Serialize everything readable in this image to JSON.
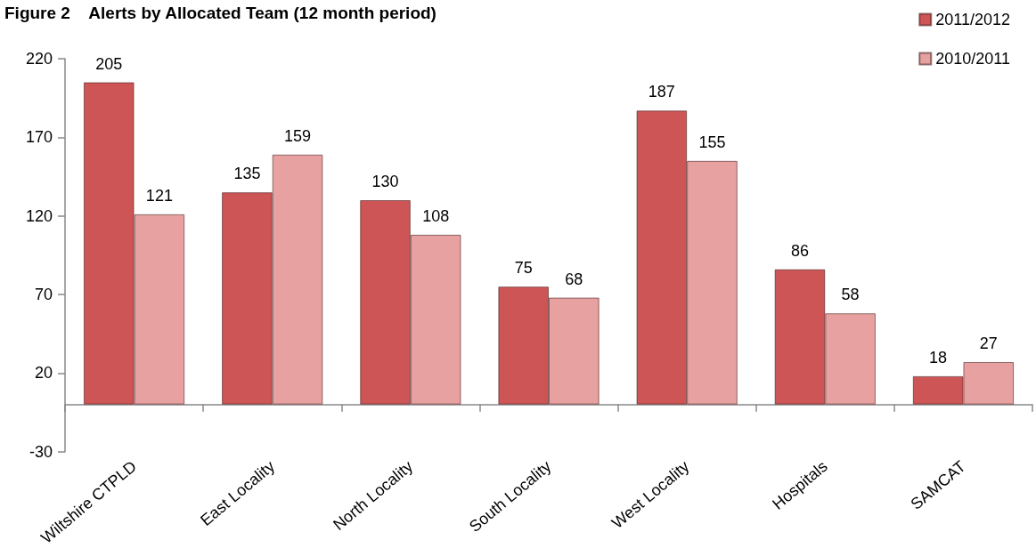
{
  "chart_data": {
    "type": "bar",
    "title": "Figure 2    Alerts by Allocated Team (12 month period)",
    "categories": [
      "Wiltshire CTPLD",
      "East Locality",
      "North Locality",
      "South Locality",
      "West Locality",
      "Hospitals",
      "SAMCAT"
    ],
    "series": [
      {
        "name": "2011/2012",
        "color": "#cd5555",
        "values": [
          205,
          135,
          130,
          75,
          187,
          86,
          18
        ]
      },
      {
        "name": "2010/2011",
        "color": "#e6a1a0",
        "values": [
          121,
          159,
          108,
          68,
          155,
          58,
          27
        ]
      }
    ],
    "ylim": [
      -30,
      220
    ],
    "yticks": [
      -30,
      20,
      70,
      120,
      170,
      220
    ],
    "grid": false,
    "legend": "top right",
    "data_labels": true
  }
}
